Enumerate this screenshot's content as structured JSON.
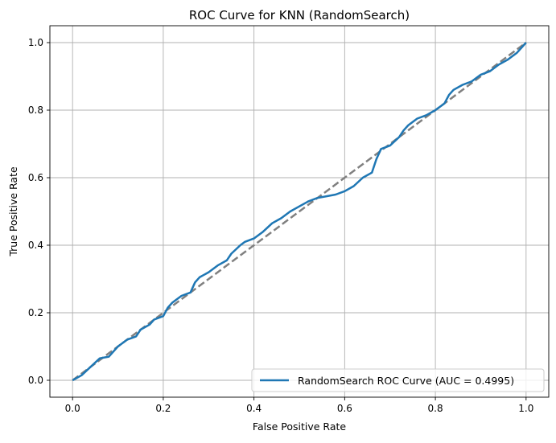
{
  "chart_data": {
    "type": "line",
    "title": "ROC Curve for KNN (RandomSearch)",
    "xlabel": "False Positive Rate",
    "ylabel": "True Positive Rate",
    "xlim": [
      -0.05,
      1.05
    ],
    "ylim": [
      -0.05,
      1.05
    ],
    "xticks": [
      "0.0",
      "0.2",
      "0.4",
      "0.6",
      "0.8",
      "1.0"
    ],
    "yticks": [
      "0.0",
      "0.2",
      "0.4",
      "0.6",
      "0.8",
      "1.0"
    ],
    "grid": true,
    "legend_placement": "lower-right",
    "series": [
      {
        "name": "RandomSearch ROC Curve (AUC = 0.4995)",
        "color": "#1f77b4",
        "style": "solid",
        "x": [
          0.0,
          0.02,
          0.04,
          0.06,
          0.08,
          0.1,
          0.12,
          0.14,
          0.15,
          0.17,
          0.18,
          0.2,
          0.21,
          0.22,
          0.24,
          0.26,
          0.27,
          0.28,
          0.3,
          0.32,
          0.34,
          0.35,
          0.37,
          0.38,
          0.4,
          0.42,
          0.44,
          0.46,
          0.48,
          0.5,
          0.52,
          0.54,
          0.56,
          0.58,
          0.6,
          0.62,
          0.64,
          0.66,
          0.67,
          0.68,
          0.7,
          0.72,
          0.73,
          0.74,
          0.76,
          0.78,
          0.8,
          0.82,
          0.83,
          0.84,
          0.86,
          0.88,
          0.9,
          0.92,
          0.94,
          0.96,
          0.98,
          1.0
        ],
        "y": [
          0.0,
          0.015,
          0.04,
          0.065,
          0.07,
          0.1,
          0.12,
          0.13,
          0.15,
          0.165,
          0.18,
          0.19,
          0.215,
          0.23,
          0.25,
          0.26,
          0.29,
          0.305,
          0.32,
          0.34,
          0.355,
          0.375,
          0.4,
          0.41,
          0.42,
          0.44,
          0.465,
          0.48,
          0.5,
          0.515,
          0.53,
          0.54,
          0.545,
          0.55,
          0.56,
          0.575,
          0.6,
          0.615,
          0.655,
          0.685,
          0.695,
          0.72,
          0.74,
          0.755,
          0.775,
          0.785,
          0.8,
          0.82,
          0.845,
          0.86,
          0.875,
          0.885,
          0.905,
          0.915,
          0.935,
          0.95,
          0.97,
          1.0
        ]
      },
      {
        "name": "",
        "color": "#808080",
        "style": "dashed",
        "x": [
          0.0,
          1.0
        ],
        "y": [
          0.0,
          1.0
        ]
      }
    ]
  }
}
